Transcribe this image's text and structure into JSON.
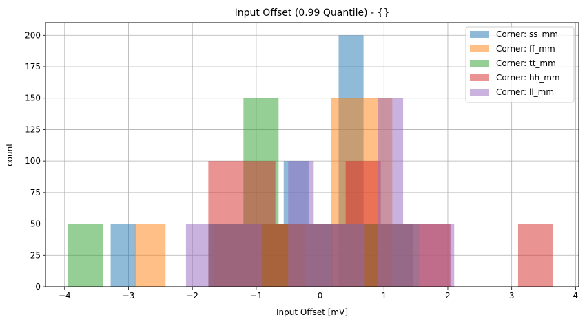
{
  "chart_data": {
    "type": "bar",
    "title": "Input Offset (0.99 Quantile) - {}",
    "xlabel": "Input Offset [mV]",
    "ylabel": "count",
    "xlim": [
      -4.3,
      4.05
    ],
    "ylim": [
      0,
      210
    ],
    "xticks": [
      -4,
      -3,
      -2,
      -1,
      0,
      1,
      2,
      3,
      4
    ],
    "xtick_labels": [
      "−4",
      "−3",
      "−2",
      "−1",
      "0",
      "1",
      "2",
      "3",
      "4"
    ],
    "yticks": [
      0,
      25,
      50,
      75,
      100,
      125,
      150,
      175,
      200
    ],
    "ytick_labels": [
      "0",
      "25",
      "50",
      "75",
      "100",
      "125",
      "150",
      "175",
      "200"
    ],
    "grid": true,
    "legend_position": "top-right",
    "bar_opacity": 0.5,
    "series": [
      {
        "name": "Corner: ss_mm",
        "color": "#1f77b4",
        "bins": [
          {
            "x0": -3.28,
            "x1": -2.89,
            "count": 50
          },
          {
            "x0": -1.74,
            "x1": -1.35,
            "count": 50
          },
          {
            "x0": -1.35,
            "x1": -0.96,
            "count": 50
          },
          {
            "x0": -0.96,
            "x1": -0.57,
            "count": 50
          },
          {
            "x0": -0.57,
            "x1": -0.18,
            "count": 100
          },
          {
            "x0": -0.18,
            "x1": 0.21,
            "count": 50
          },
          {
            "x0": 0.29,
            "x1": 0.68,
            "count": 200
          },
          {
            "x0": 0.68,
            "x1": 1.07,
            "count": 50
          },
          {
            "x0": 1.07,
            "x1": 1.46,
            "count": 50
          }
        ]
      },
      {
        "name": "Corner: ff_mm",
        "color": "#ff7f0e",
        "bins": [
          {
            "x0": -2.9,
            "x1": -2.42,
            "count": 50
          },
          {
            "x0": -1.68,
            "x1": -1.2,
            "count": 50
          },
          {
            "x0": -1.2,
            "x1": -0.72,
            "count": 50
          },
          {
            "x0": -0.72,
            "x1": -0.24,
            "count": 50
          },
          {
            "x0": 0.17,
            "x1": 0.65,
            "count": 150
          },
          {
            "x0": 0.65,
            "x1": 1.13,
            "count": 150
          },
          {
            "x0": 1.55,
            "x1": 2.03,
            "count": 50
          }
        ]
      },
      {
        "name": "Corner: tt_mm",
        "color": "#2ca02c",
        "bins": [
          {
            "x0": -3.95,
            "x1": -3.4,
            "count": 50
          },
          {
            "x0": -1.75,
            "x1": -1.2,
            "count": 50
          },
          {
            "x0": -1.2,
            "x1": -0.65,
            "count": 150
          },
          {
            "x0": -0.65,
            "x1": -0.1,
            "count": 50
          },
          {
            "x0": -0.1,
            "x1": 0.45,
            "count": 50
          },
          {
            "x0": 0.45,
            "x1": 1.0,
            "count": 50
          },
          {
            "x0": 1.0,
            "x1": 1.55,
            "count": 50
          }
        ]
      },
      {
        "name": "Corner: hh_mm",
        "color": "#d62728",
        "bins": [
          {
            "x0": -1.75,
            "x1": -0.7,
            "count": 100
          },
          {
            "x0": -0.7,
            "x1": 0.4,
            "count": 50
          },
          {
            "x0": 0.4,
            "x1": 0.95,
            "count": 100
          },
          {
            "x0": 0.95,
            "x1": 1.5,
            "count": 50
          },
          {
            "x0": 1.5,
            "x1": 2.05,
            "count": 50
          },
          {
            "x0": 3.1,
            "x1": 3.65,
            "count": 50
          }
        ]
      },
      {
        "name": "Corner: ll_mm",
        "color": "#9467bd",
        "bins": [
          {
            "x0": -2.1,
            "x1": -1.7,
            "count": 50
          },
          {
            "x0": -1.7,
            "x1": -1.3,
            "count": 50
          },
          {
            "x0": -1.3,
            "x1": -0.9,
            "count": 50
          },
          {
            "x0": -0.5,
            "x1": -0.1,
            "count": 100
          },
          {
            "x0": -0.1,
            "x1": 0.3,
            "count": 50
          },
          {
            "x0": 0.3,
            "x1": 0.7,
            "count": 50
          },
          {
            "x0": 0.9,
            "x1": 1.3,
            "count": 150
          },
          {
            "x0": 1.3,
            "x1": 1.7,
            "count": 50
          },
          {
            "x0": 1.7,
            "x1": 2.1,
            "count": 50
          }
        ]
      }
    ]
  }
}
